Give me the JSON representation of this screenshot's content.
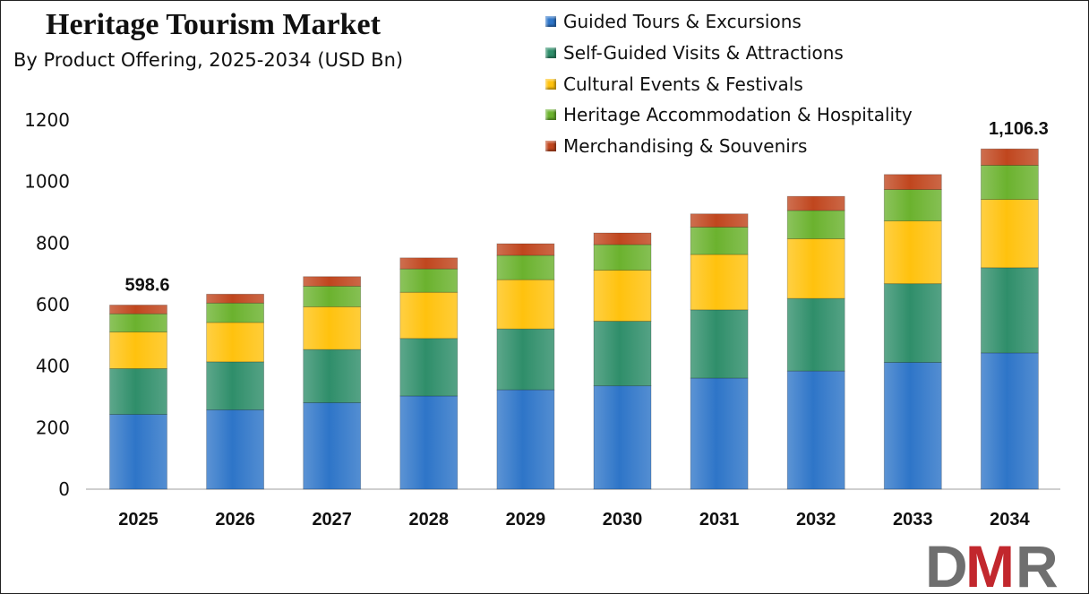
{
  "title": "Heritage Tourism Market",
  "subtitle": "By Product Offering, 2025-2034 (USD Bn)",
  "logo_text": "DMR",
  "chart_data": {
    "type": "bar",
    "stacked": true,
    "categories": [
      "2025",
      "2026",
      "2027",
      "2028",
      "2029",
      "2030",
      "2031",
      "2032",
      "2033",
      "2034"
    ],
    "series": [
      {
        "name": "Guided Tours & Excursions",
        "color": "#2E75C8",
        "values": [
          243,
          258,
          281,
          303,
          323,
          336,
          361,
          384,
          412,
          443
        ]
      },
      {
        "name": "Self-Guided Visits & Attractions",
        "color": "#2F8E6A",
        "values": [
          149,
          156,
          173,
          187,
          198,
          210,
          222,
          236,
          256,
          277
        ]
      },
      {
        "name": "Cultural Events & Festivals",
        "color": "#FFC20E",
        "values": [
          119,
          128,
          139,
          150,
          160,
          166,
          180,
          194,
          204,
          222
        ]
      },
      {
        "name": "Heritage Accommodation & Hospitality",
        "color": "#6BB22E",
        "values": [
          59,
          63,
          67,
          76,
          79,
          83,
          89,
          92,
          102,
          111
        ]
      },
      {
        "name": "Merchandising & Souvenirs",
        "color": "#C0461E",
        "values": [
          28.6,
          29,
          31,
          36,
          38,
          38,
          43,
          46,
          49,
          53.3
        ]
      }
    ],
    "totals_labels": [
      {
        "category": "2025",
        "text": "598.6",
        "value": 598.6
      },
      {
        "category": "2034",
        "text": "1,106.3",
        "value": 1106.3
      }
    ],
    "ylim": [
      0,
      1200
    ],
    "yticks": [
      0,
      200,
      400,
      600,
      800,
      1000,
      1200
    ],
    "grid": false,
    "legend_position": "top-right"
  }
}
